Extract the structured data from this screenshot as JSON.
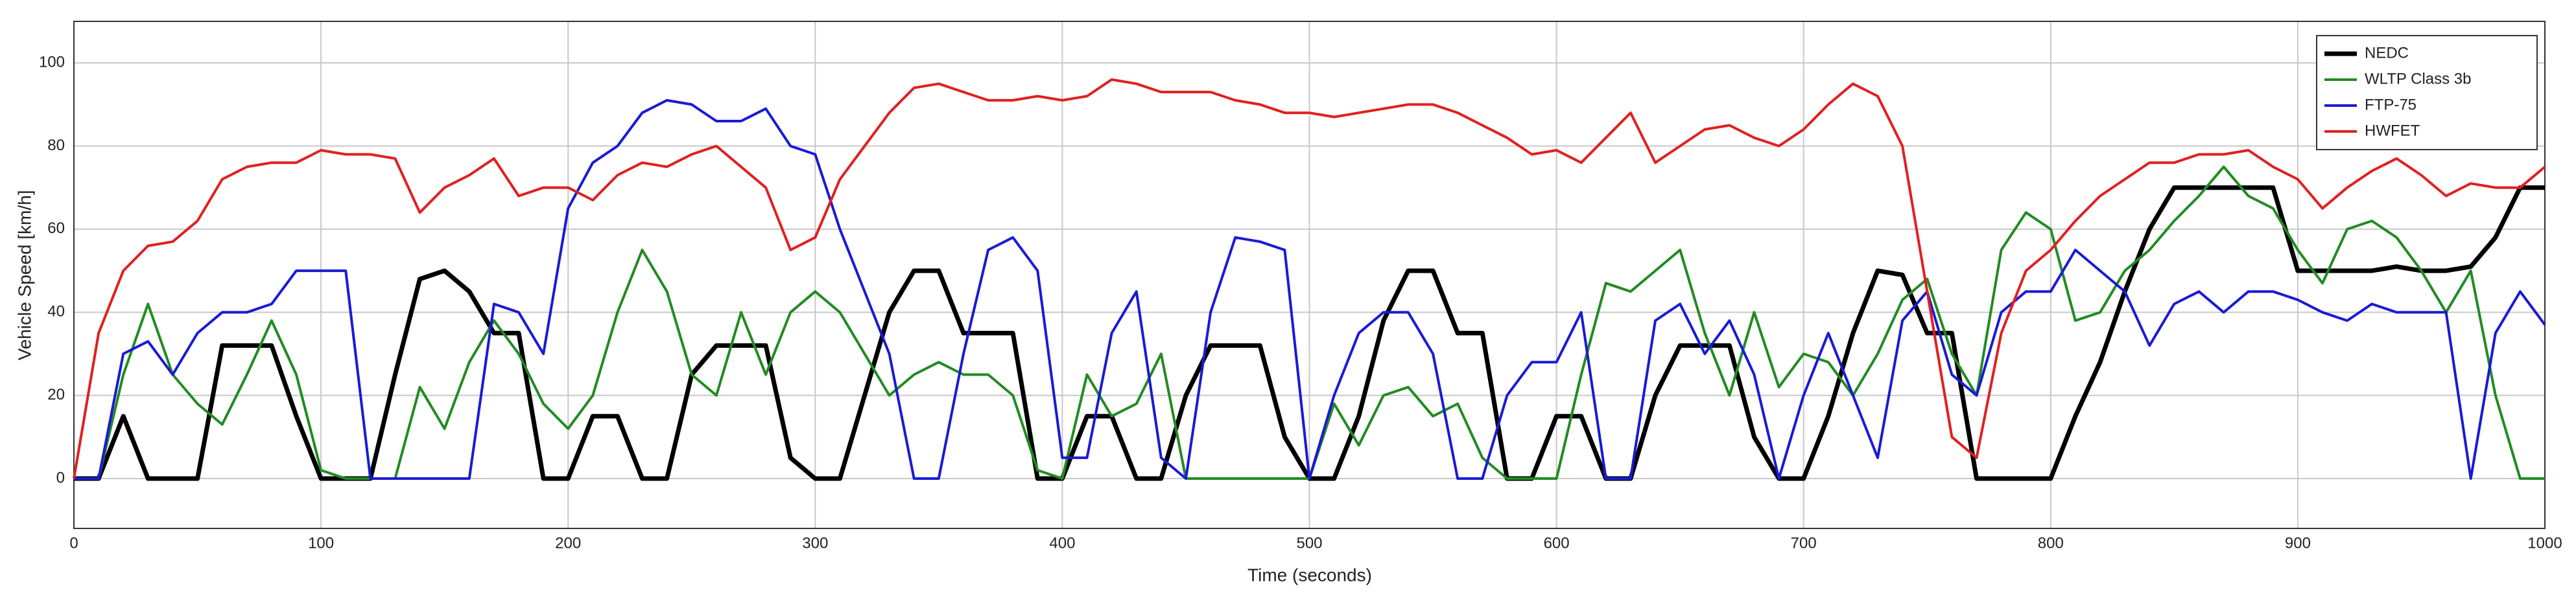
{
  "chart_data": {
    "type": "line",
    "x_label": "Time (seconds)",
    "y_label": "Vehicle Speed [km/h]",
    "x": [
      0,
      10,
      20,
      30,
      40,
      50,
      60,
      70,
      80,
      90,
      100,
      110,
      120,
      130,
      140,
      150,
      160,
      170,
      180,
      190,
      200,
      210,
      220,
      230,
      240,
      250,
      260,
      270,
      280,
      290,
      300,
      310,
      320,
      330,
      340,
      350,
      360,
      370,
      380,
      390,
      400,
      410,
      420,
      430,
      440,
      450,
      460,
      470,
      480,
      490,
      500,
      510,
      520,
      530,
      540,
      550,
      560,
      570,
      580,
      590,
      600,
      610,
      620,
      630,
      640,
      650,
      660,
      670,
      680,
      690,
      700,
      710,
      720,
      730,
      740,
      750,
      760,
      770,
      780,
      790,
      800,
      810,
      820,
      830,
      840,
      850,
      860,
      870,
      880,
      890,
      900,
      910,
      920,
      930,
      940,
      950,
      960,
      970,
      980,
      990,
      1000
    ],
    "series": [
      {
        "name": "NEDC",
        "color": "#000000",
        "values": [
          0,
          0,
          15,
          0,
          0,
          0,
          32,
          32,
          32,
          15,
          0,
          0,
          0,
          25,
          48,
          50,
          45,
          35,
          35,
          0,
          0,
          15,
          15,
          0,
          0,
          25,
          32,
          32,
          32,
          5,
          0,
          0,
          20,
          40,
          50,
          50,
          35,
          35,
          35,
          0,
          0,
          15,
          15,
          0,
          0,
          20,
          32,
          32,
          32,
          10,
          0,
          0,
          15,
          38,
          50,
          50,
          35,
          35,
          0,
          0,
          15,
          15,
          0,
          0,
          20,
          32,
          32,
          32,
          10,
          0,
          0,
          15,
          35,
          50,
          49,
          35,
          35,
          0,
          0,
          0,
          0,
          15,
          28,
          45,
          60,
          70,
          70,
          70,
          70,
          70,
          50,
          50,
          50,
          50,
          51,
          50,
          50,
          51,
          58,
          70,
          70
        ]
      },
      {
        "name": "WLTP Class 3b",
        "color": "#228b22",
        "values": [
          0,
          0,
          25,
          42,
          25,
          18,
          13,
          25,
          38,
          25,
          2,
          0,
          0,
          0,
          22,
          12,
          28,
          38,
          30,
          18,
          12,
          20,
          40,
          55,
          45,
          25,
          20,
          40,
          25,
          40,
          45,
          40,
          30,
          20,
          25,
          28,
          25,
          25,
          20,
          2,
          0,
          25,
          15,
          18,
          30,
          0,
          0,
          0,
          0,
          0,
          0,
          18,
          8,
          20,
          22,
          15,
          18,
          5,
          0,
          0,
          0,
          25,
          47,
          45,
          50,
          55,
          35,
          20,
          40,
          22,
          30,
          28,
          20,
          30,
          43,
          48,
          30,
          20,
          55,
          64,
          60,
          38,
          40,
          50,
          55,
          62,
          68,
          75,
          68,
          65,
          55,
          47,
          60,
          62,
          58,
          50,
          40,
          50,
          20,
          0,
          0
        ]
      },
      {
        "name": "FTP-75",
        "color": "#1a1ad6",
        "values": [
          0,
          0,
          30,
          33,
          25,
          35,
          40,
          40,
          42,
          50,
          50,
          50,
          0,
          0,
          0,
          0,
          0,
          42,
          40,
          30,
          65,
          76,
          80,
          88,
          91,
          90,
          86,
          86,
          89,
          80,
          78,
          60,
          45,
          30,
          0,
          0,
          30,
          55,
          58,
          50,
          5,
          5,
          35,
          45,
          5,
          0,
          40,
          58,
          57,
          55,
          0,
          20,
          35,
          40,
          40,
          30,
          0,
          0,
          20,
          28,
          28,
          40,
          0,
          0,
          38,
          42,
          30,
          38,
          25,
          0,
          20,
          35,
          20,
          5,
          38,
          45,
          25,
          20,
          40,
          45,
          45,
          55,
          50,
          45,
          32,
          42,
          45,
          40,
          45,
          45,
          43,
          40,
          38,
          42,
          40,
          40,
          40,
          0,
          35,
          45,
          37
        ]
      },
      {
        "name": "HWFET",
        "color": "#e02020",
        "values": [
          0,
          35,
          50,
          56,
          57,
          62,
          72,
          75,
          76,
          76,
          79,
          78,
          78,
          77,
          64,
          70,
          73,
          77,
          68,
          70,
          70,
          67,
          73,
          76,
          75,
          78,
          80,
          75,
          70,
          55,
          58,
          72,
          80,
          88,
          94,
          95,
          93,
          91,
          91,
          92,
          91,
          92,
          96,
          95,
          93,
          93,
          93,
          91,
          90,
          88,
          88,
          87,
          88,
          89,
          90,
          90,
          88,
          85,
          82,
          78,
          79,
          76,
          82,
          88,
          76,
          80,
          84,
          85,
          82,
          80,
          84,
          90,
          95,
          92,
          80,
          45,
          10,
          5,
          35,
          50,
          55,
          62,
          68,
          72,
          76,
          76,
          78,
          78,
          79,
          75,
          72,
          65,
          70,
          74,
          77,
          73,
          68,
          71,
          70,
          70,
          75
        ]
      }
    ],
    "xlim": [
      0,
      1000
    ],
    "xticks": [
      0,
      100,
      200,
      300,
      400,
      500,
      600,
      700,
      800,
      900,
      1000
    ],
    "ylim": [
      -12,
      110
    ],
    "yticks": [
      0,
      20,
      40,
      60,
      80,
      100
    ],
    "grid": true,
    "legend": "upper right"
  }
}
